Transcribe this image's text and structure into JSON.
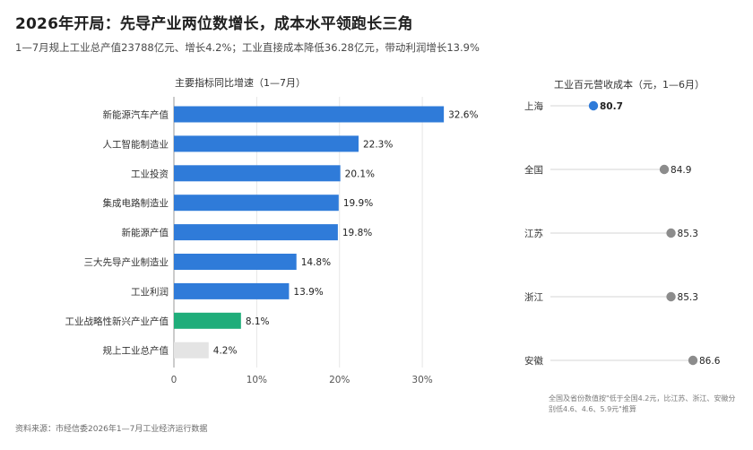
{
  "header": {
    "title": "2026年开局：先导产业两位数增长，成本水平领跑长三角",
    "subtitle": "1—7月规上工业总产值23788亿元、增长4.2%；工业直接成本降低36.28亿元，带动利润增长13.9%"
  },
  "footer": {
    "source": "资料来源：市经信委2026年1—7月工业经济运行数据",
    "note": "全国及省份数值按\"低于全国4.2元，比江苏、浙江、安徽分别低4.6、4.6、5.9元\"推算"
  },
  "colors": {
    "primary": "#2f7bd9",
    "green": "#1fad7a",
    "gray_bar": "#e4e4e4",
    "dot_gray": "#8c8c8c"
  },
  "chart_data": [
    {
      "type": "bar",
      "orientation": "horizontal",
      "title": "主要指标同比增速（1—7月）",
      "categories": [
        "新能源汽车产值",
        "人工智能制造业",
        "工业投资",
        "集成电路制造业",
        "新能源产值",
        "三大先导产业制造业",
        "工业利润",
        "工业战略性新兴产业产值",
        "规上工业总产值"
      ],
      "values": [
        32.6,
        22.3,
        20.1,
        19.9,
        19.8,
        14.8,
        13.9,
        8.1,
        4.2
      ],
      "value_labels": [
        "32.6%",
        "22.3%",
        "20.1%",
        "19.9%",
        "19.8%",
        "14.8%",
        "13.9%",
        "8.1%",
        "4.2%"
      ],
      "bar_colors": [
        "primary",
        "primary",
        "primary",
        "primary",
        "primary",
        "primary",
        "primary",
        "green",
        "gray_bar"
      ],
      "xlim": [
        0,
        38
      ],
      "xticks": [
        0,
        10,
        20,
        30
      ],
      "xtick_labels": [
        "0",
        "10%",
        "20%",
        "30%"
      ],
      "grid": true
    },
    {
      "type": "scatter",
      "style": "dot-plot",
      "title": "工业百元营收成本（元，1—6月）",
      "categories": [
        "上海",
        "全国",
        "江苏",
        "浙江",
        "安徽"
      ],
      "values": [
        80.7,
        84.9,
        85.3,
        85.3,
        86.6
      ],
      "value_labels": [
        "80.7",
        "84.9",
        "85.3",
        "85.3",
        "86.6"
      ],
      "highlight": "上海",
      "xlim": [
        77,
        87.5
      ]
    }
  ]
}
